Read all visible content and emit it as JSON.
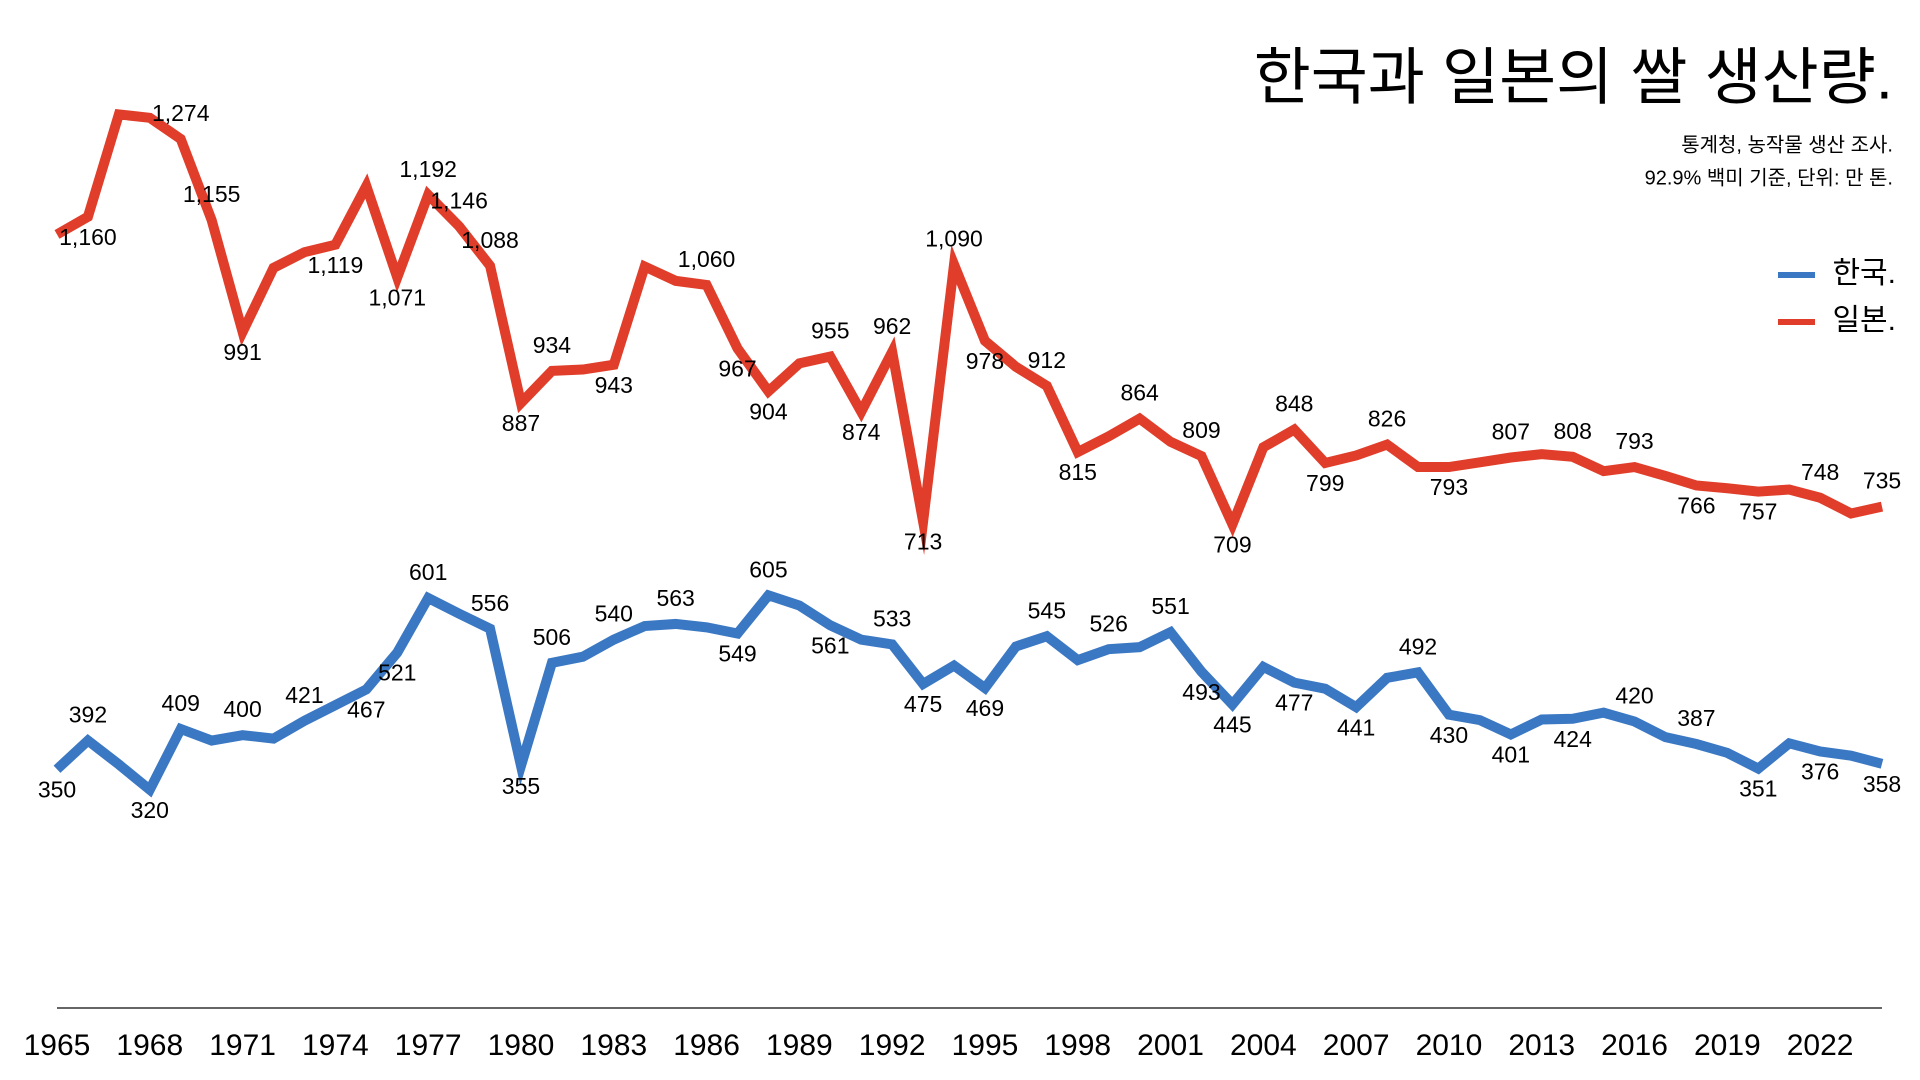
{
  "chart_data": {
    "type": "line",
    "title": "한국과 일본의 쌀 생산량.",
    "notes": [
      "통계청, 농작물 생산 조사.",
      "92.9% 백미 기준, 단위: 만 톤."
    ],
    "x": [
      1965,
      1966,
      1967,
      1968,
      1969,
      1970,
      1971,
      1972,
      1973,
      1974,
      1975,
      1976,
      1977,
      1978,
      1979,
      1980,
      1981,
      1982,
      1983,
      1984,
      1985,
      1986,
      1987,
      1988,
      1989,
      1990,
      1991,
      1992,
      1993,
      1994,
      1995,
      1996,
      1997,
      1998,
      1999,
      2000,
      2001,
      2002,
      2003,
      2004,
      2005,
      2006,
      2007,
      2008,
      2009,
      2010,
      2011,
      2012,
      2013,
      2014,
      2015,
      2016,
      2017,
      2018,
      2019,
      2020,
      2021,
      2022,
      2023,
      2024
    ],
    "xlim": [
      1965,
      2024
    ],
    "xticks": [
      1965,
      1968,
      1971,
      1974,
      1977,
      1980,
      1983,
      1986,
      1989,
      1992,
      1995,
      1998,
      2001,
      2004,
      2007,
      2010,
      2013,
      2016,
      2019,
      2022
    ],
    "ylim": [
      0,
      1400
    ],
    "legend": "upper right",
    "series": [
      {
        "name": "한국.",
        "color": "#3b78c3",
        "values": [
          350,
          392,
          357,
          320,
          409,
          392,
          400,
          395,
          421,
          444,
          467,
          521,
          601,
          578,
          556,
          355,
          506,
          515,
          540,
          560,
          563,
          558,
          549,
          605,
          590,
          561,
          540,
          533,
          475,
          502,
          469,
          530,
          545,
          510,
          526,
          529,
          551,
          493,
          445,
          500,
          477,
          468,
          441,
          484,
          492,
          430,
          422,
          401,
          423,
          424,
          433,
          420,
          397,
          387,
          374,
          351,
          388,
          376,
          370,
          358
        ],
        "value_labels": [
          "350",
          "392",
          null,
          "320",
          "409",
          null,
          "400",
          null,
          "421",
          null,
          "467",
          "521",
          "601",
          null,
          "556",
          "355",
          "506",
          null,
          "540",
          null,
          "563",
          null,
          "549",
          "605",
          null,
          "561",
          null,
          "533",
          "475",
          null,
          "469",
          null,
          "545",
          null,
          "526",
          null,
          "551",
          "493",
          "445",
          null,
          "477",
          null,
          "441",
          null,
          "492",
          "430",
          null,
          "401",
          null,
          "424",
          null,
          "420",
          null,
          "387",
          null,
          "351",
          null,
          "376",
          null,
          "358"
        ]
      },
      {
        "name": "일본.",
        "color": "#e03e2a",
        "values": [
          1134,
          1160,
          1310,
          1305,
          1274,
          1155,
          991,
          1085,
          1108,
          1119,
          1205,
          1071,
          1192,
          1146,
          1088,
          887,
          934,
          936,
          943,
          1087,
          1066,
          1060,
          967,
          904,
          945,
          955,
          874,
          962,
          713,
          1090,
          978,
          940,
          912,
          815,
          838,
          864,
          830,
          809,
          709,
          822,
          848,
          799,
          810,
          826,
          793,
          793,
          800,
          807,
          812,
          808,
          787,
          793,
          780,
          766,
          762,
          757,
          760,
          748,
          725,
          735
        ],
        "value_labels": [
          null,
          "1,160",
          null,
          null,
          "1,274",
          "1,155",
          "991",
          null,
          null,
          "1,119",
          null,
          "1,071",
          "1,192",
          "1,146",
          "1,088",
          "887",
          "934",
          null,
          "943",
          null,
          null,
          "1,060",
          "967",
          "904",
          null,
          "955",
          "874",
          "962",
          "713",
          "1,090",
          "978",
          null,
          "912",
          "815",
          null,
          "864",
          null,
          "809",
          "709",
          null,
          "848",
          "799",
          null,
          "826",
          null,
          "793",
          null,
          "807",
          null,
          "808",
          null,
          "793",
          null,
          "766",
          null,
          "757",
          null,
          "748",
          null,
          "735"
        ]
      }
    ]
  }
}
